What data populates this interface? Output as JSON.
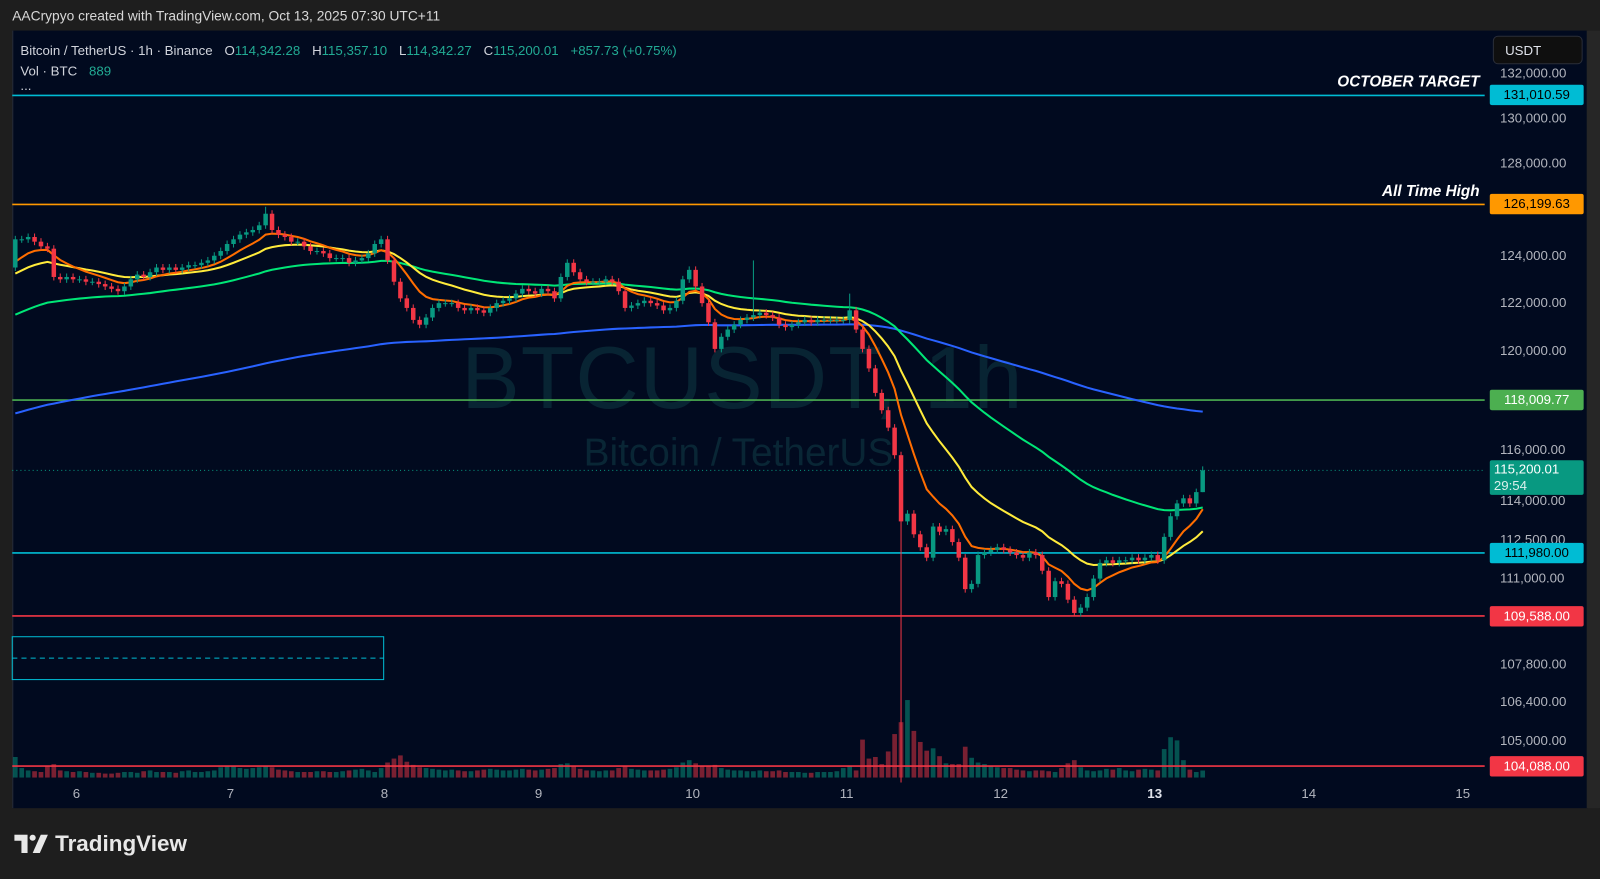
{
  "header": {
    "credit": "AACrypyo created with TradingView.com, Oct 13, 2025 07:30 UTC+11"
  },
  "legend": {
    "symbol": "Bitcoin / TetherUS · 1h · Binance",
    "o_label": "O",
    "o": "114,342.28",
    "h_label": "H",
    "h": "115,357.10",
    "l_label": "L",
    "l": "114,342.27",
    "c_label": "C",
    "c": "115,200.01",
    "change": "+857.73 (+0.75%)",
    "vol_label": "Vol · BTC",
    "vol": "889",
    "more": "..."
  },
  "currency_button": "USDT",
  "watermark": {
    "line1": "BTCUSDT, 1h",
    "line2": "Bitcoin / TetherUS"
  },
  "price_axis": {
    "scale": "log",
    "ticks": [
      "132,000.00",
      "130,000.00",
      "128,000.00",
      "124,000.00",
      "122,000.00",
      "120,000.00",
      "116,000.00",
      "114,000.00",
      "112,500.00",
      "111,000.00",
      "107,800.00",
      "106,400.00",
      "105,000.00"
    ]
  },
  "levels": [
    {
      "price": 131010.59,
      "label": "131,010.59",
      "text": "OCTOBER TARGET",
      "color": "#00bcd4",
      "text_color": "#000000"
    },
    {
      "price": 126199.63,
      "label": "126,199.63",
      "text": "All Time High",
      "color": "#ff9800",
      "text_color": "#000000"
    },
    {
      "price": 118009.77,
      "label": "118,009.77",
      "text": "",
      "color": "#4caf50",
      "text_color": "#ffffff"
    },
    {
      "price": 111980.0,
      "label": "111,980.00",
      "text": "",
      "color": "#00bcd4",
      "text_color": "#000000"
    },
    {
      "price": 109588.0,
      "label": "109,588.00",
      "text": "",
      "color": "#f23645",
      "text_color": "#ffffff"
    },
    {
      "price": 104088.0,
      "label": "104,088.00",
      "text": "",
      "color": "#f23645",
      "text_color": "#ffffff"
    }
  ],
  "current_price": {
    "label": "115,200.01",
    "countdown": "29:54",
    "color": "#089981"
  },
  "time_axis": {
    "labels": [
      "6",
      "7",
      "8",
      "9",
      "10",
      "11",
      "12",
      "13",
      "14",
      "15"
    ],
    "bold": "13"
  },
  "logo": {
    "text": "TradingView"
  },
  "chart_data": {
    "type": "candlestick",
    "symbol": "BTCUSDT",
    "interval": "1h",
    "start": "2025-10-05 14:00",
    "first_open": 123500,
    "colors": {
      "up": "#089981",
      "down": "#f23645",
      "ma_fast": "#ff6d00",
      "ma_mid": "#ffeb3b",
      "ma_slow": "#00e676",
      "ma_long": "#2962ff"
    },
    "closes": [
      124700,
      124700,
      124800,
      124600,
      124400,
      124300,
      123100,
      123000,
      123100,
      123000,
      123000,
      122900,
      122900,
      122800,
      122700,
      122600,
      122500,
      122700,
      123000,
      123200,
      123100,
      123300,
      123500,
      123400,
      123500,
      123400,
      123500,
      123600,
      123600,
      123700,
      123800,
      124000,
      124200,
      124500,
      124700,
      124900,
      125000,
      125100,
      125300,
      125800,
      125100,
      124900,
      124800,
      124600,
      124600,
      124400,
      124200,
      124200,
      124100,
      123900,
      123900,
      123900,
      123700,
      123800,
      123900,
      124100,
      124500,
      124700,
      123800,
      122900,
      122200,
      121800,
      121300,
      121100,
      121400,
      121800,
      122000,
      122000,
      122000,
      121800,
      121700,
      121800,
      121700,
      121600,
      121800,
      122000,
      122100,
      122200,
      122400,
      122600,
      122500,
      122400,
      122600,
      122500,
      122200,
      123100,
      123700,
      123300,
      123000,
      122900,
      122900,
      122900,
      123000,
      122900,
      122500,
      121800,
      121900,
      122000,
      122100,
      122000,
      121900,
      121700,
      121800,
      122100,
      123000,
      123400,
      122700,
      122000,
      121200,
      120100,
      120600,
      120900,
      121100,
      121300,
      121400,
      121500,
      121600,
      121500,
      121400,
      121100,
      121000,
      121100,
      121200,
      121300,
      121200,
      121300,
      121300,
      121300,
      121300,
      121300,
      121700,
      120900,
      120100,
      119300,
      118300,
      117600,
      116900,
      115800,
      113200,
      113500,
      112700,
      112200,
      111800,
      113000,
      112800,
      112900,
      112400,
      111800,
      110600,
      110800,
      111900,
      112000,
      112100,
      112200,
      112100,
      112000,
      111900,
      111800,
      112000,
      111900,
      111300,
      110300,
      110900,
      110800,
      110200,
      109700,
      109900,
      110300,
      111000,
      111600,
      111700,
      111600,
      111700,
      111700,
      111800,
      111700,
      111800,
      111900,
      111700,
      112600,
      113400,
      113900,
      114100,
      113900,
      114342.28,
      115200.01
    ],
    "volumes": [
      2600,
      1200,
      900,
      800,
      700,
      1500,
      1700,
      900,
      800,
      700,
      800,
      700,
      600,
      600,
      500,
      500,
      600,
      700,
      700,
      600,
      800,
      900,
      700,
      700,
      700,
      600,
      800,
      900,
      700,
      700,
      800,
      900,
      1300,
      1400,
      1500,
      1200,
      1100,
      1200,
      1300,
      1500,
      1300,
      1000,
      900,
      800,
      700,
      700,
      700,
      800,
      800,
      700,
      700,
      800,
      900,
      1000,
      1100,
      900,
      700,
      1200,
      1900,
      2400,
      2800,
      2000,
      1600,
      1300,
      1200,
      1100,
      1000,
      900,
      1000,
      900,
      800,
      800,
      900,
      1000,
      1100,
      1000,
      900,
      900,
      1000,
      1100,
      1000,
      900,
      1000,
      1100,
      1200,
      1700,
      1800,
      1400,
      1100,
      900,
      900,
      800,
      900,
      900,
      1200,
      1500,
      1100,
      1000,
      900,
      900,
      900,
      1000,
      1100,
      1300,
      1900,
      2200,
      1800,
      1500,
      1400,
      1600,
      1200,
      1000,
      900,
      900,
      800,
      800,
      900,
      800,
      800,
      900,
      700,
      700,
      700,
      600,
      600,
      700,
      700,
      700,
      800,
      1200,
      1400,
      900,
      4800,
      2400,
      2600,
      1700,
      3300,
      5500,
      7000,
      9800,
      5900,
      4500,
      3400,
      3700,
      2700,
      1800,
      1700,
      1700,
      3900,
      2500,
      1900,
      1700,
      1400,
      1300,
      1200,
      1200,
      1000,
      900,
      800,
      900,
      900,
      800,
      700,
      1200,
      1800,
      2200,
      1300,
      900,
      800,
      900,
      1100,
      1000,
      1200,
      900,
      800,
      1000,
      1100,
      1000,
      900,
      3600,
      5100,
      4700,
      2200,
      1000,
      700,
      889
    ],
    "wicks": [
      {
        "time": "2025-10-07 05:00",
        "high": 126100
      },
      {
        "time": "2025-10-10 09:00",
        "high": 123800
      },
      {
        "time": "2025-10-11 00:00",
        "high": 122400
      },
      {
        "time": "2025-10-11 08:00",
        "low": 103500
      },
      {
        "time": "2025-10-13 07:00",
        "high": 115357.1,
        "low": 114342.27
      }
    ],
    "ylim": [
      104000,
      132500
    ]
  }
}
